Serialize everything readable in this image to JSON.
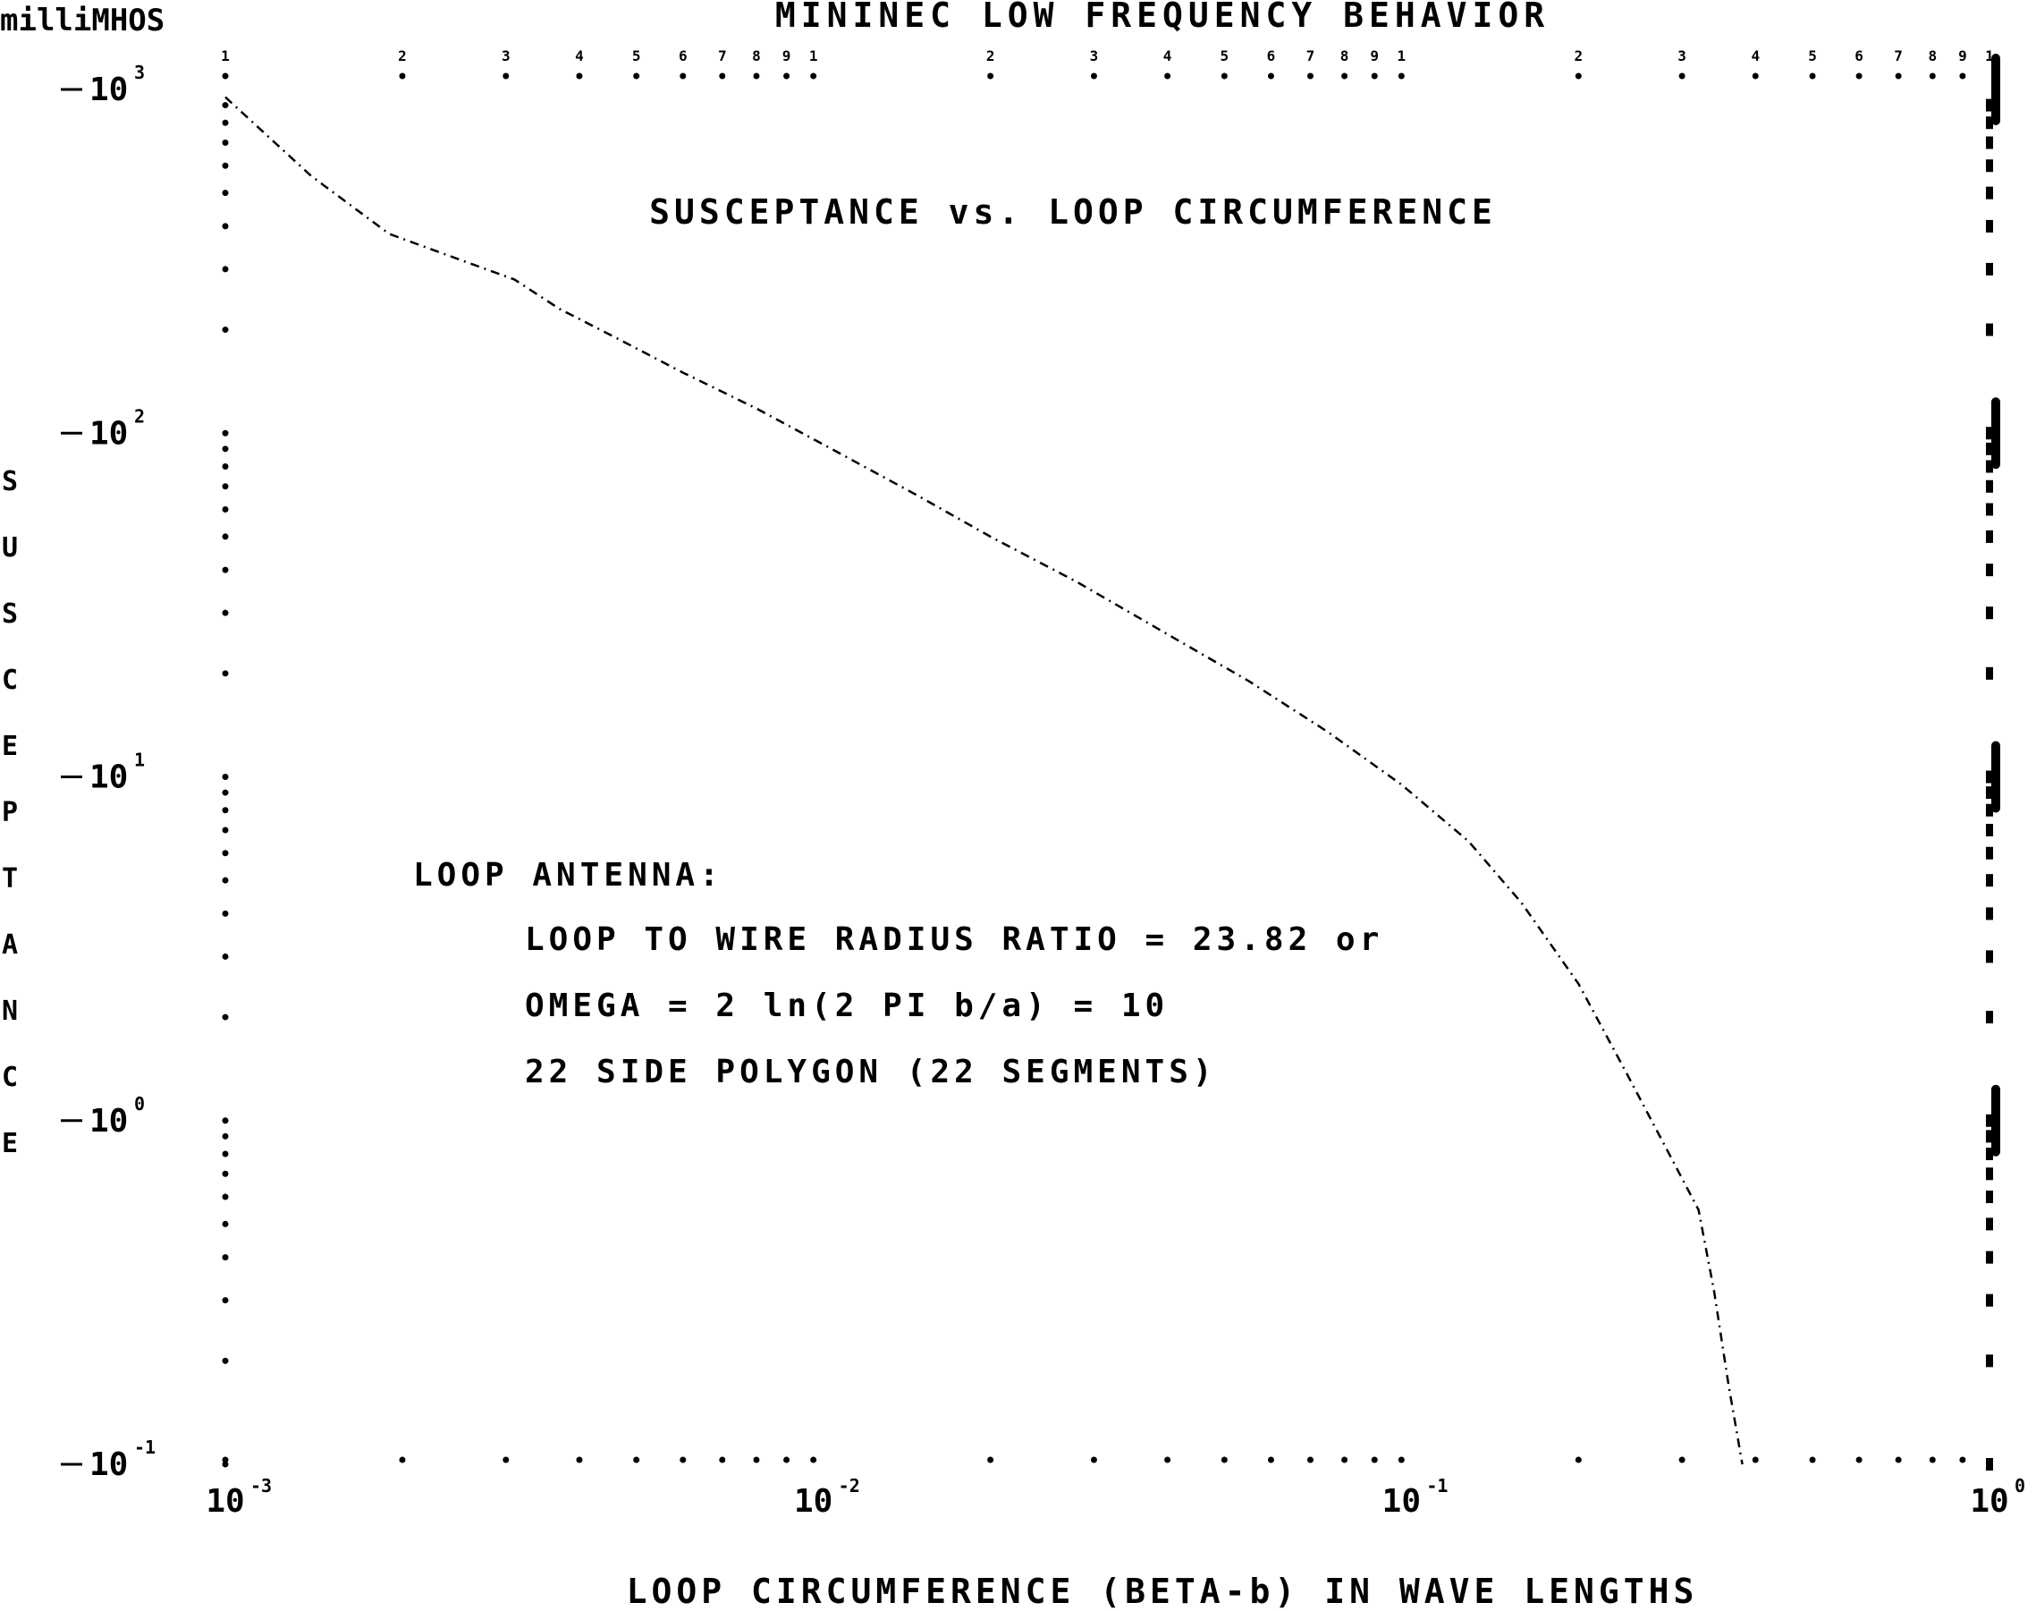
{
  "header": {
    "units": "milliMHOS",
    "title": "MININEC LOW FREQUENCY BEHAVIOR"
  },
  "chart_data": {
    "type": "line",
    "title": "MININEC LOW FREQUENCY BEHAVIOR",
    "subtitle": "SUSCEPTANCE vs. LOOP CIRCUMFERENCE",
    "xlabel": "LOOP CIRCUMFERENCE (BETA-b) IN WAVE LENGTHS",
    "ylabel": "SUSCEPTANCE",
    "ylabel_units": "milliMHOS",
    "x_scale": "log",
    "y_scale": "log",
    "xlim": [
      0.001,
      1
    ],
    "ylim": [
      0.1,
      1000
    ],
    "x_ticks": [
      {
        "value": 0.001,
        "base": "10",
        "exp": "-3"
      },
      {
        "value": 0.01,
        "base": "10",
        "exp": "-2"
      },
      {
        "value": 0.1,
        "base": "10",
        "exp": "-1"
      },
      {
        "value": 1,
        "base": "10",
        "exp": "0"
      }
    ],
    "y_ticks": [
      {
        "value": 1000,
        "base": "10",
        "exp": "3"
      },
      {
        "value": 100,
        "base": "10",
        "exp": "2"
      },
      {
        "value": 10,
        "base": "10",
        "exp": "1"
      },
      {
        "value": 1,
        "base": "10",
        "exp": "0"
      },
      {
        "value": 0.1,
        "base": "10",
        "exp": "-1"
      }
    ],
    "top_minor_labels": [
      "1",
      "2",
      "3",
      "4",
      "5",
      "6",
      "7",
      "8",
      "9",
      "1",
      "2",
      "3",
      "4",
      "5",
      "6",
      "7",
      "8",
      "9",
      "1",
      "2",
      "3",
      "4",
      "5",
      "6",
      "7",
      "8",
      "9",
      "1"
    ],
    "grid": false,
    "series": [
      {
        "x": [
          0.001,
          0.0014,
          0.0019,
          0.0025,
          0.0031,
          0.0037,
          0.0046,
          0.006,
          0.008,
          0.011,
          0.015,
          0.02,
          0.028,
          0.04,
          0.055,
          0.075,
          0.1,
          0.13,
          0.16,
          0.2,
          0.24,
          0.28,
          0.32,
          0.34,
          0.36,
          0.38
        ],
        "y": [
          950,
          560,
          380,
          320,
          280,
          230,
          190,
          150,
          118,
          88,
          66,
          50,
          37,
          26,
          19,
          13.5,
          9.5,
          6.5,
          4.3,
          2.5,
          1.4,
          0.85,
          0.55,
          0.32,
          0.17,
          0.1
        ]
      }
    ],
    "annotations": [
      "LOOP ANTENNA:",
      "LOOP TO WIRE RADIUS RATIO = 23.82 or",
      "OMEGA = 2 ln(2 PI b/a) = 10",
      "22 SIDE POLYGON (22 SEGMENTS)"
    ]
  }
}
